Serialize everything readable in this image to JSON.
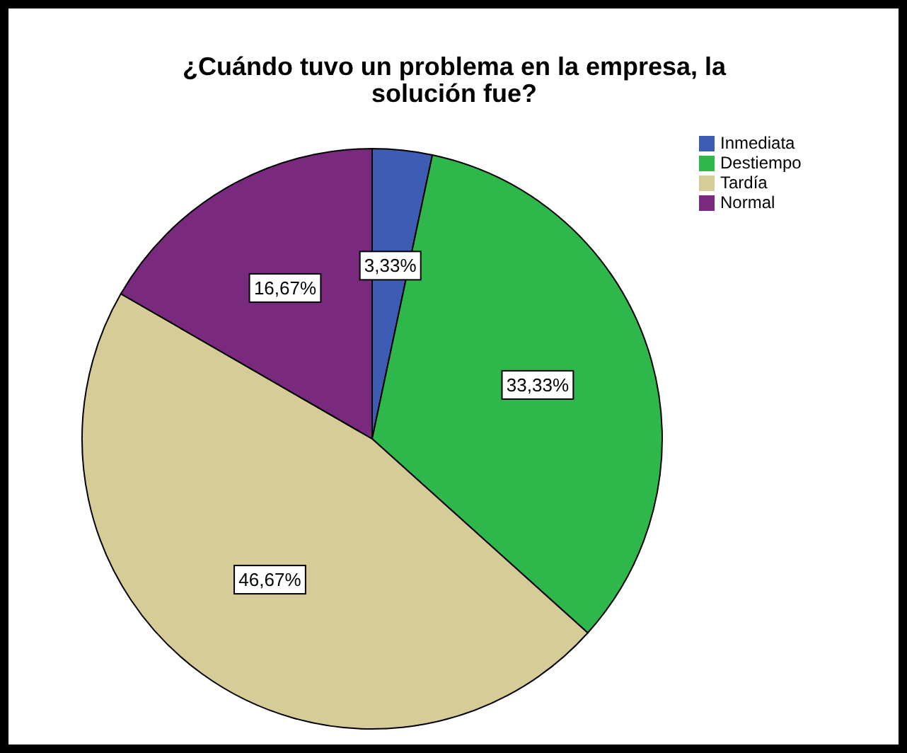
{
  "chart_data": {
    "type": "pie",
    "title": "¿Cuándo tuvo un problema en la empresa, la solución fue?",
    "categories": [
      "Inmediata",
      "Destiempo",
      "Tardía",
      "Normal"
    ],
    "values": [
      3.33,
      33.33,
      46.67,
      16.67
    ],
    "colors": [
      "#3d5cb3",
      "#2eb84c",
      "#d5cc98",
      "#7a2a7e"
    ],
    "value_labels": [
      "3,33%",
      "33,33%",
      "46,67%",
      "16,67%"
    ],
    "legend": "top right"
  }
}
